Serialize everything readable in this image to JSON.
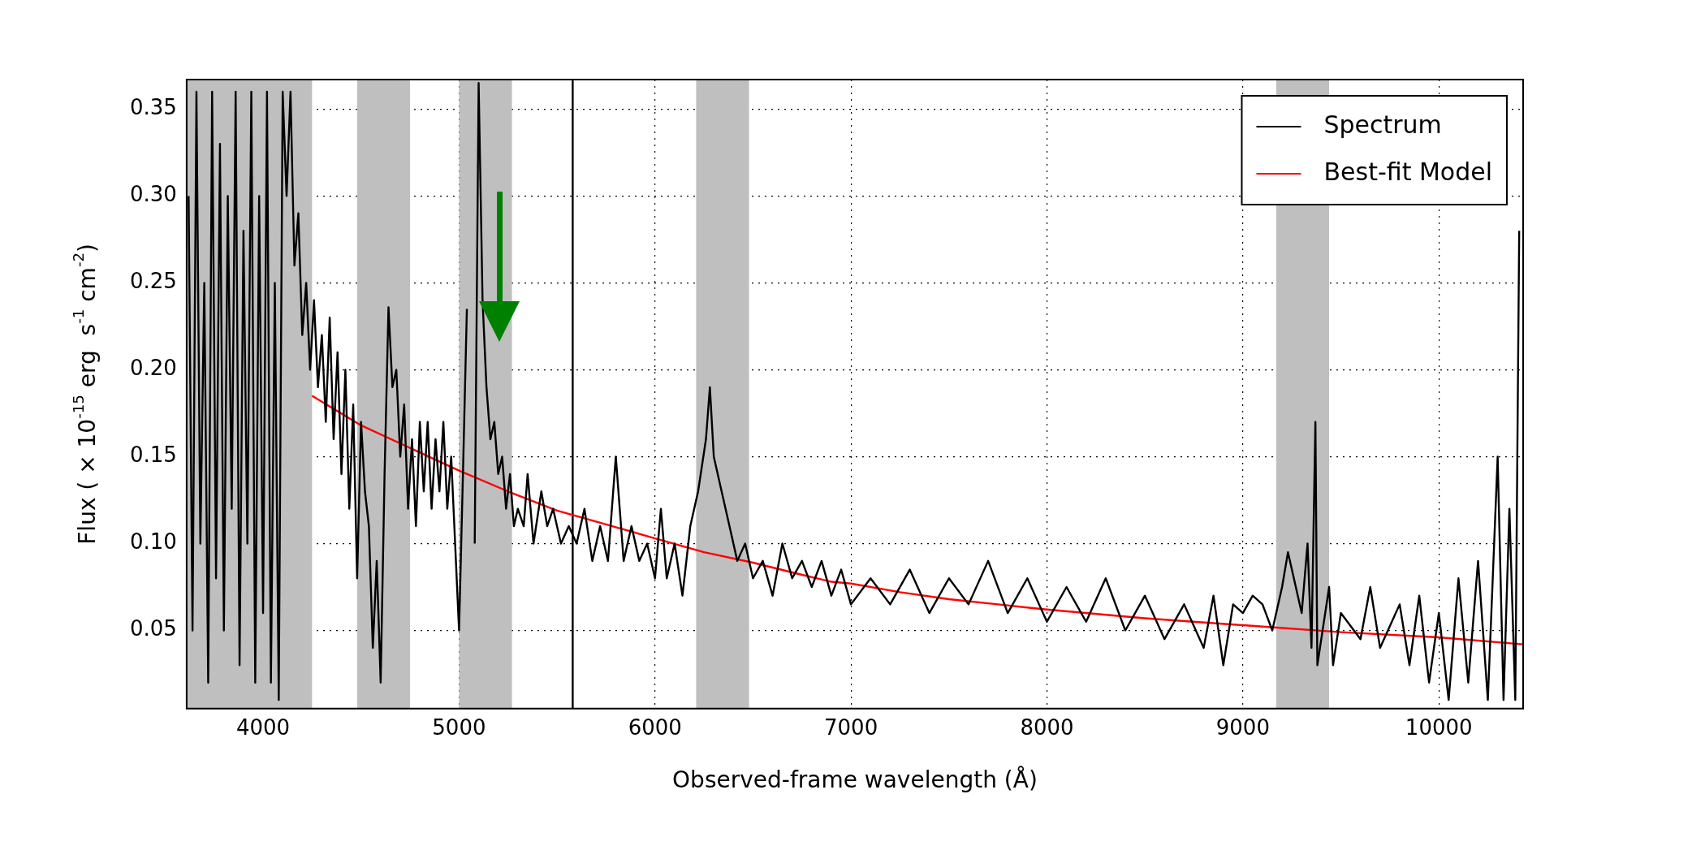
{
  "chart_data": {
    "type": "line",
    "xlabel": "Observed-frame wavelength (Å)",
    "ylabel": "Flux ( × 10$^{-15}$ erg  s$^{-1}$ cm$^{-2}$)",
    "xlim": [
      3610,
      10430
    ],
    "ylim": [
      0.005,
      0.367
    ],
    "xticks": [
      4000,
      5000,
      6000,
      7000,
      8000,
      9000,
      10000
    ],
    "yticks": [
      0.05,
      {
        "value": 0.1,
        "label": "0.10"
      },
      0.15,
      {
        "value": 0.2,
        "label": "0.20"
      },
      0.25,
      {
        "value": 0.3,
        "label": "0.30"
      },
      0.35
    ],
    "grid": true,
    "legend": "top right",
    "line_style": "solid",
    "marker": "none",
    "bands": [
      {
        "axis": "x",
        "from": 3610,
        "to": 4250,
        "color": "#bfbfbf"
      },
      {
        "axis": "x",
        "from": 4480,
        "to": 4750,
        "color": "#bfbfbf"
      },
      {
        "axis": "x",
        "from": 5000,
        "to": 5270,
        "color": "#bfbfbf"
      },
      {
        "axis": "x",
        "from": 6210,
        "to": 6480,
        "color": "#bfbfbf"
      },
      {
        "axis": "x",
        "from": 9170,
        "to": 9440,
        "color": "#bfbfbf"
      }
    ],
    "ref_lines": [
      {
        "axis": "x",
        "value": 5580,
        "color": "#000000",
        "line_style": "solid"
      }
    ],
    "series": [
      {
        "name": "Spectrum",
        "color": "#000000",
        "x": [
          3620,
          3640,
          3660,
          3680,
          3700,
          3720,
          3740,
          3760,
          3780,
          3800,
          3820,
          3840,
          3860,
          3880,
          3900,
          3920,
          3940,
          3960,
          3980,
          4000,
          4020,
          4040,
          4060,
          4080,
          4100,
          4120,
          4140,
          4160,
          4180,
          4200,
          4220,
          4240,
          4260,
          4280,
          4300,
          4320,
          4340,
          4360,
          4380,
          4400,
          4420,
          4440,
          4460,
          4480,
          4500,
          4520,
          4540,
          4560,
          4580,
          4600,
          4620,
          4640,
          4660,
          4680,
          4700,
          4720,
          4740,
          4760,
          4780,
          4800,
          4820,
          4840,
          4860,
          4880,
          4900,
          4920,
          4940,
          4960,
          4980,
          5000,
          5020,
          5040,
          5060,
          5080,
          5100,
          5120,
          5140,
          5160,
          5180,
          5200,
          5220,
          5240,
          5260,
          5280,
          5300,
          5330,
          5350,
          5380,
          5420,
          5450,
          5480,
          5520,
          5560,
          5600,
          5640,
          5680,
          5720,
          5760,
          5800,
          5840,
          5880,
          5920,
          5960,
          6000,
          6030,
          6060,
          6100,
          6140,
          6180,
          6220,
          6260,
          6280,
          6300,
          6340,
          6380,
          6420,
          6460,
          6500,
          6550,
          6600,
          6650,
          6700,
          6750,
          6800,
          6850,
          6900,
          6950,
          7000,
          7100,
          7200,
          7300,
          7400,
          7500,
          7600,
          7700,
          7800,
          7900,
          8000,
          8100,
          8200,
          8300,
          8400,
          8500,
          8600,
          8700,
          8800,
          8850,
          8900,
          8950,
          9000,
          9050,
          9100,
          9150,
          9200,
          9230,
          9260,
          9300,
          9330,
          9350,
          9370,
          9380,
          9420,
          9440,
          9460,
          9500,
          9600,
          9650,
          9700,
          9800,
          9850,
          9900,
          9950,
          10000,
          10050,
          10100,
          10150,
          10200,
          10250,
          10300,
          10330,
          10360,
          10390,
          10410
        ],
        "values": [
          0.3,
          0.05,
          0.36,
          0.1,
          0.25,
          0.02,
          0.36,
          0.08,
          0.33,
          0.05,
          0.3,
          0.12,
          0.36,
          0.03,
          0.28,
          0.1,
          0.36,
          0.02,
          0.3,
          0.06,
          0.36,
          0.02,
          0.25,
          0.01,
          0.36,
          0.3,
          0.36,
          0.26,
          0.29,
          0.22,
          0.25,
          0.2,
          0.24,
          0.19,
          0.22,
          0.17,
          0.23,
          0.16,
          0.21,
          0.14,
          0.2,
          0.12,
          0.18,
          0.08,
          0.17,
          0.13,
          0.11,
          0.04,
          0.09,
          0.02,
          0.14,
          0.236,
          0.19,
          0.2,
          0.15,
          0.18,
          0.12,
          0.16,
          0.11,
          0.17,
          0.13,
          0.17,
          0.12,
          0.16,
          0.13,
          0.17,
          0.12,
          0.15,
          0.1,
          0.05,
          0.14,
          0.235,
          null,
          0.1,
          0.365,
          0.24,
          0.19,
          0.16,
          0.17,
          0.14,
          0.15,
          0.12,
          0.14,
          0.11,
          0.12,
          0.11,
          0.14,
          0.1,
          0.13,
          0.11,
          0.12,
          0.1,
          0.11,
          0.1,
          0.12,
          0.09,
          0.11,
          0.09,
          0.15,
          0.09,
          0.11,
          0.09,
          0.1,
          0.08,
          0.12,
          0.08,
          0.1,
          0.07,
          0.11,
          0.13,
          0.16,
          0.19,
          0.15,
          0.13,
          0.11,
          0.09,
          0.1,
          0.08,
          0.09,
          0.07,
          0.1,
          0.08,
          0.09,
          0.075,
          0.09,
          0.07,
          0.085,
          0.065,
          0.08,
          0.065,
          0.085,
          0.06,
          0.08,
          0.065,
          0.09,
          0.06,
          0.08,
          0.055,
          0.075,
          0.055,
          0.08,
          0.05,
          0.07,
          0.045,
          0.065,
          0.04,
          0.07,
          0.03,
          0.065,
          0.06,
          0.07,
          0.065,
          0.05,
          0.075,
          0.095,
          0.08,
          0.06,
          0.1,
          0.04,
          0.17,
          0.03,
          0.06,
          0.075,
          0.03,
          0.06,
          0.045,
          0.075,
          0.04,
          0.065,
          0.03,
          0.07,
          0.02,
          0.06,
          0.01,
          0.08,
          0.02,
          0.09,
          0.01,
          0.15,
          0.01,
          0.12,
          0.01,
          0.28
        ]
      },
      {
        "name": "Best-fit Model",
        "color": "#ff0000",
        "x": [
          4250,
          4500,
          4750,
          5000,
          5250,
          5500,
          5750,
          6000,
          6250,
          6500,
          6750,
          6900,
          7000,
          7250,
          7500,
          7750,
          8000,
          8500,
          9000,
          9500,
          10000,
          10430
        ],
        "values": [
          0.185,
          0.168,
          0.155,
          0.142,
          0.13,
          0.119,
          0.111,
          0.103,
          0.095,
          0.089,
          0.082,
          0.078,
          0.077,
          0.072,
          0.068,
          0.065,
          0.062,
          0.057,
          0.053,
          0.049,
          0.046,
          0.042
        ]
      }
    ]
  }
}
